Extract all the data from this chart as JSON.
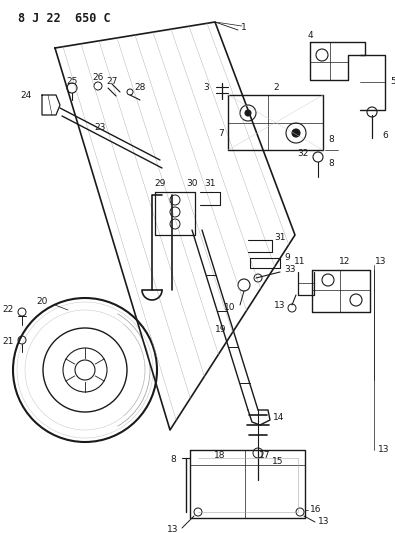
{
  "title": "8 J 22  650 C",
  "bg_color": "#ffffff",
  "line_color": "#1a1a1a",
  "title_fontsize": 8.5,
  "label_fontsize": 6.5,
  "fig_width": 3.95,
  "fig_height": 5.33,
  "dpi": 100
}
